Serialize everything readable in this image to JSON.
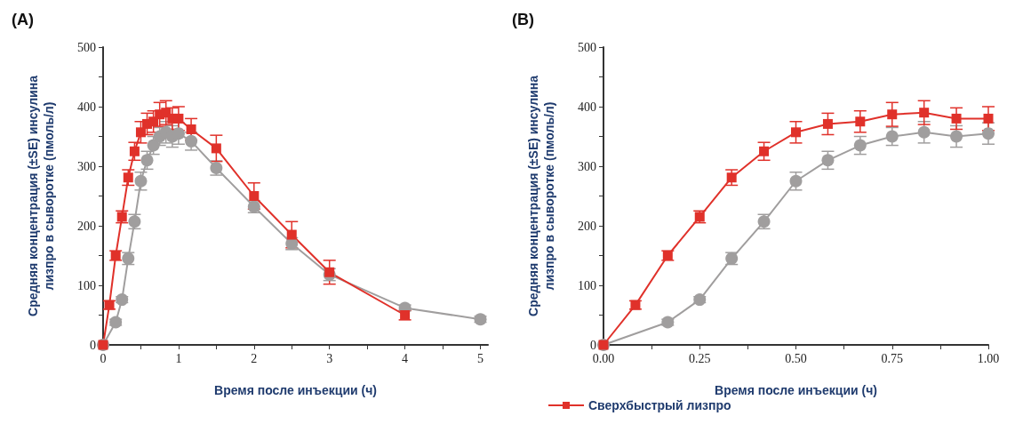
{
  "chart_data": [
    {
      "type": "line",
      "title": "(A)",
      "xlabel": "Время после инъекции (ч)",
      "ylabel": "Средняя концентрация (±SE) инсулина\nлизпро в сыворотке (пмоль/л)",
      "xlim": [
        0,
        5.1
      ],
      "ylim": [
        0,
        500
      ],
      "xticks": [
        0,
        {
          "value": 0.5,
          "label": null
        },
        1,
        {
          "value": 1.5,
          "label": null
        },
        2,
        {
          "value": 2.5,
          "label": null
        },
        3,
        {
          "value": 3.5,
          "label": null
        },
        4,
        {
          "value": 4.5,
          "label": null
        },
        5
      ],
      "yticks": [
        0,
        {
          "value": 50,
          "label": null
        },
        100,
        {
          "value": 150,
          "label": null
        },
        200,
        {
          "value": 250,
          "label": null
        },
        300,
        {
          "value": 350,
          "label": null
        },
        400,
        {
          "value": 450,
          "label": null
        },
        500
      ],
      "grid": false,
      "legend": false,
      "series": [
        {
          "color": "#a09e9e",
          "marker": "circle",
          "x": [
            0,
            0.167,
            0.25,
            0.333,
            0.417,
            0.5,
            0.583,
            0.667,
            0.75,
            0.833,
            0.917,
            1.0,
            1.167,
            1.5,
            2,
            2.5,
            3,
            4,
            5
          ],
          "values": [
            0,
            38,
            76,
            145,
            207,
            275,
            310,
            335,
            350,
            357,
            350,
            355,
            342,
            297,
            232,
            170,
            118,
            62,
            43
          ],
          "errors": [
            0,
            5,
            5,
            10,
            12,
            15,
            15,
            15,
            15,
            18,
            18,
            18,
            15,
            12,
            10,
            10,
            10,
            5,
            5
          ]
        },
        {
          "color": "#e0312a",
          "marker": "square",
          "x": [
            0,
            0.083,
            0.167,
            0.25,
            0.333,
            0.417,
            0.5,
            0.583,
            0.667,
            0.75,
            0.833,
            0.917,
            1.0,
            1.167,
            1.5,
            2,
            2.5,
            3,
            4
          ],
          "values": [
            0,
            67,
            150,
            215,
            281,
            325,
            357,
            371,
            375,
            387,
            390,
            380,
            380,
            362,
            330,
            250,
            185,
            122,
            50
          ],
          "errors": [
            0,
            7,
            8,
            10,
            13,
            15,
            18,
            18,
            18,
            20,
            20,
            18,
            20,
            18,
            22,
            22,
            22,
            20,
            8
          ]
        }
      ]
    },
    {
      "type": "line",
      "title": "(B)",
      "xlabel": "Время после инъекции (ч)",
      "ylabel": "Средняя концентрация (±SE) инсулина\nлизпро в сыворотке (пмоль/л)",
      "xlim": [
        0,
        1
      ],
      "ylim": [
        0,
        500
      ],
      "xticks": [
        {
          "value": 0,
          "label": "0.00"
        },
        {
          "value": 0.125,
          "label": null
        },
        {
          "value": 0.25,
          "label": "0.25"
        },
        {
          "value": 0.375,
          "label": null
        },
        {
          "value": 0.5,
          "label": "0.50"
        },
        {
          "value": 0.625,
          "label": null
        },
        {
          "value": 0.75,
          "label": "0.75"
        },
        {
          "value": 0.875,
          "label": null
        },
        {
          "value": 1,
          "label": "1.00"
        }
      ],
      "yticks": [
        0,
        {
          "value": 50,
          "label": null
        },
        100,
        {
          "value": 150,
          "label": null
        },
        200,
        {
          "value": 250,
          "label": null
        },
        300,
        {
          "value": 350,
          "label": null
        },
        400,
        {
          "value": 450,
          "label": null
        },
        500
      ],
      "grid": false,
      "legend": "bottom left",
      "series": [
        {
          "color": "#a09e9e",
          "marker": "circle",
          "x": [
            0,
            0.167,
            0.25,
            0.333,
            0.417,
            0.5,
            0.583,
            0.667,
            0.75,
            0.833,
            0.917,
            1.0
          ],
          "values": [
            0,
            38,
            76,
            145,
            207,
            275,
            310,
            335,
            350,
            357,
            350,
            355
          ],
          "errors": [
            0,
            5,
            5,
            10,
            12,
            15,
            15,
            15,
            15,
            18,
            18,
            18
          ]
        },
        {
          "name": "Сверхбыстрый лизпро",
          "color": "#e0312a",
          "marker": "square",
          "x": [
            0,
            0.083,
            0.167,
            0.25,
            0.333,
            0.417,
            0.5,
            0.583,
            0.667,
            0.75,
            0.833,
            0.917,
            1.0
          ],
          "values": [
            0,
            67,
            150,
            215,
            281,
            325,
            357,
            371,
            375,
            387,
            390,
            380,
            380
          ],
          "errors": [
            0,
            7,
            8,
            10,
            13,
            15,
            18,
            18,
            18,
            20,
            20,
            18,
            20
          ]
        }
      ]
    }
  ]
}
